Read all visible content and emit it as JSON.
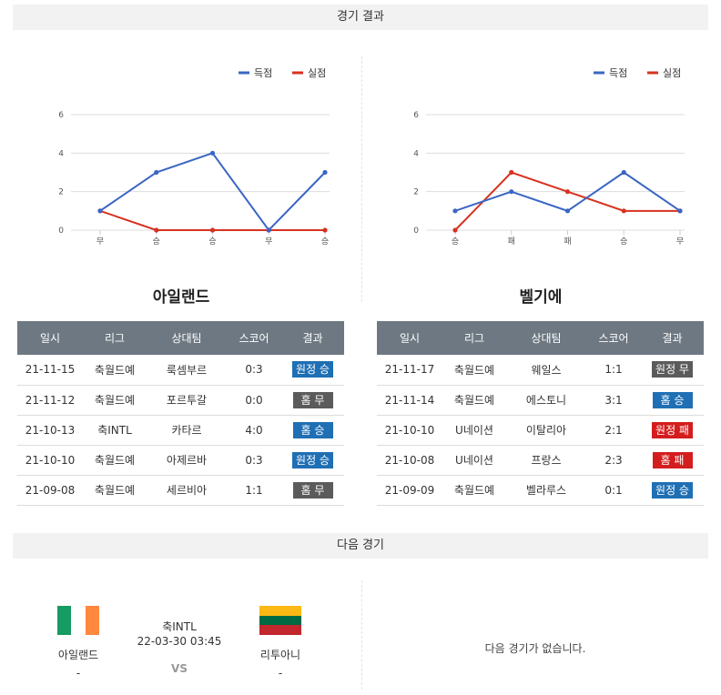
{
  "sections": {
    "results_title": "경기 결과",
    "next_title": "다음 경기"
  },
  "legend": {
    "scored": "득점",
    "conceded": "실점"
  },
  "colors": {
    "scored": "#3a66c4",
    "conceded": "#d8311f",
    "grid": "#dddddd",
    "header": "#6d7882"
  },
  "chart_data": [
    {
      "type": "line",
      "categories": [
        "무",
        "승",
        "승",
        "무",
        "승"
      ],
      "ylim": [
        0,
        6
      ],
      "yticks": [
        "0",
        "2",
        "4",
        "6"
      ],
      "series": [
        {
          "name": "득점",
          "values": [
            1,
            3,
            4,
            0,
            3
          ]
        },
        {
          "name": "실점",
          "values": [
            1,
            0,
            0,
            0,
            0
          ]
        }
      ],
      "legend": "top-right",
      "grid": true
    },
    {
      "type": "line",
      "categories": [
        "승",
        "패",
        "패",
        "승",
        "무"
      ],
      "ylim": [
        0,
        6
      ],
      "yticks": [
        "0",
        "2",
        "4",
        "6"
      ],
      "series": [
        {
          "name": "득점",
          "values": [
            1,
            2,
            1,
            3,
            1
          ]
        },
        {
          "name": "실점",
          "values": [
            0,
            3,
            2,
            1,
            1
          ]
        }
      ],
      "legend": "top-right",
      "grid": true
    }
  ],
  "table_headers": [
    "일시",
    "리그",
    "상대팀",
    "스코어",
    "결과"
  ],
  "result_colors": {
    "원정 승": "#1f6fb4",
    "홈 승": "#1f6fb4",
    "홈 무": "#5b5b5b",
    "원정 무": "#5b5b5b",
    "원정 패": "#d41d1d",
    "홈 패": "#d41d1d"
  },
  "left_team": {
    "name": "아일랜드",
    "matches": [
      {
        "date": "21-11-15",
        "league": "축월드예",
        "opponent": "룩셈부르",
        "score": "0:3",
        "result": "원정 승"
      },
      {
        "date": "21-11-12",
        "league": "축월드예",
        "opponent": "포르투갈",
        "score": "0:0",
        "result": "홈 무"
      },
      {
        "date": "21-10-13",
        "league": "축INTL",
        "opponent": "카타르",
        "score": "4:0",
        "result": "홈 승"
      },
      {
        "date": "21-10-10",
        "league": "축월드예",
        "opponent": "아제르바",
        "score": "0:3",
        "result": "원정 승"
      },
      {
        "date": "21-09-08",
        "league": "축월드예",
        "opponent": "세르비아",
        "score": "1:1",
        "result": "홈 무"
      }
    ]
  },
  "right_team": {
    "name": "벨기에",
    "matches": [
      {
        "date": "21-11-17",
        "league": "축월드예",
        "opponent": "웨일스",
        "score": "1:1",
        "result": "원정 무"
      },
      {
        "date": "21-11-14",
        "league": "축월드예",
        "opponent": "에스토니",
        "score": "3:1",
        "result": "홈 승"
      },
      {
        "date": "21-10-10",
        "league": "U네이션",
        "opponent": "이탈리아",
        "score": "2:1",
        "result": "원정 패"
      },
      {
        "date": "21-10-08",
        "league": "U네이션",
        "opponent": "프랑스",
        "score": "2:3",
        "result": "홈 패"
      },
      {
        "date": "21-09-09",
        "league": "축월드예",
        "opponent": "벨라루스",
        "score": "0:1",
        "result": "원정 승"
      }
    ]
  },
  "next_match": {
    "home_name": "아일랜드",
    "home_score": "-",
    "home_flag_colors": [
      "#169b62",
      "#ffffff",
      "#ff883e"
    ],
    "league": "축INTL",
    "datetime": "22-03-30 03:45",
    "vs": "VS",
    "away_name": "리투아니",
    "away_score": "-",
    "away_flag_colors": [
      "#fdb913",
      "#006a44",
      "#c1272d"
    ],
    "no_match_text": "다음 경기가 없습니다."
  }
}
